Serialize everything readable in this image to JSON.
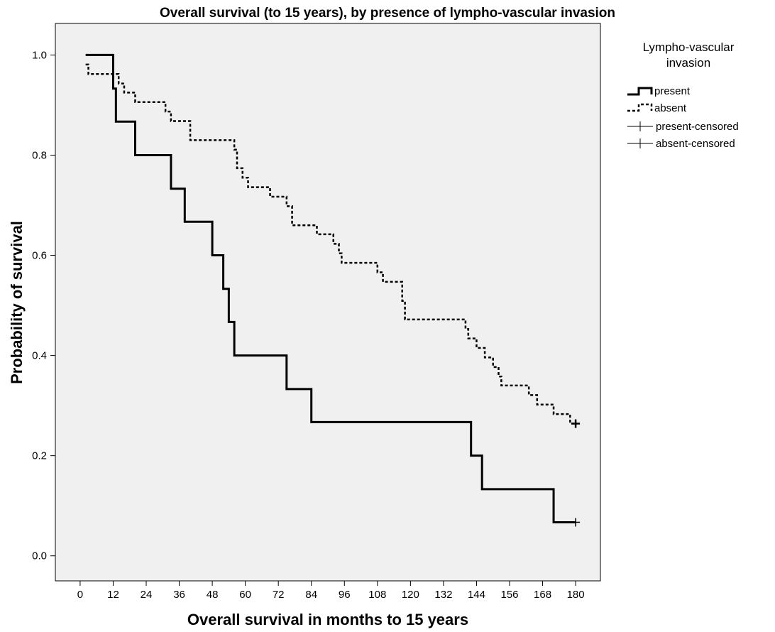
{
  "chart_data": {
    "type": "line",
    "subtype": "kaplan-meier step survival",
    "title": "Overall survival (to 15 years), by presence of lympho-vascular invasion",
    "xlabel": "Overall survival in months to 15 years",
    "ylabel": "Probability of survival",
    "xlim": [
      -9,
      189
    ],
    "ylim": [
      -0.05,
      1.063
    ],
    "x_ticks": [
      0,
      12,
      24,
      36,
      48,
      60,
      72,
      84,
      96,
      108,
      120,
      132,
      144,
      156,
      168,
      180
    ],
    "y_ticks": [
      0.0,
      0.2,
      0.4,
      0.6,
      0.8,
      1.0
    ],
    "y_tick_labels": [
      "0.0",
      "0.2",
      "0.4",
      "0.6",
      "0.8",
      "1.0"
    ],
    "grid": false,
    "plot_background": "#f0f0f0",
    "legend": {
      "title": "Lympho-vascular invasion",
      "title_lines": [
        "Lympho-vascular",
        "invasion"
      ],
      "placement": "right",
      "entries": [
        "present",
        "absent",
        "present-censored",
        "absent-censored"
      ]
    },
    "series": [
      {
        "name": "present",
        "line_style": "solid",
        "color": "#000000",
        "x": [
          2,
          12,
          13,
          20,
          33,
          38,
          48,
          52,
          54,
          56,
          75,
          84,
          142,
          146,
          172,
          180
        ],
        "y": [
          1.0,
          0.933,
          0.867,
          0.8,
          0.733,
          0.667,
          0.6,
          0.533,
          0.467,
          0.4,
          0.333,
          0.267,
          0.2,
          0.133,
          0.067,
          0.067
        ],
        "censored_x": [
          180
        ],
        "censored_y": [
          0.067
        ]
      },
      {
        "name": "absent",
        "line_style": "dashed",
        "color": "#000000",
        "x": [
          2,
          3,
          14,
          16,
          20,
          23,
          31,
          33,
          40,
          56,
          57,
          59,
          61,
          69,
          75,
          77,
          86,
          89,
          92,
          94,
          95,
          108,
          110,
          117,
          118,
          140,
          141,
          143,
          144,
          145,
          147,
          150,
          152,
          153,
          163,
          164,
          166,
          168,
          172,
          175,
          178,
          180
        ],
        "y": [
          0.981,
          0.962,
          0.943,
          0.925,
          0.906,
          0.906,
          0.887,
          0.868,
          0.83,
          0.811,
          0.774,
          0.755,
          0.736,
          0.717,
          0.698,
          0.66,
          0.642,
          0.642,
          0.623,
          0.604,
          0.585,
          0.566,
          0.547,
          0.509,
          0.472,
          0.453,
          0.434,
          0.434,
          0.415,
          0.415,
          0.396,
          0.377,
          0.358,
          0.34,
          0.321,
          0.321,
          0.302,
          0.302,
          0.283,
          0.283,
          0.264,
          0.264
        ],
        "censored_x": [
          180
        ],
        "censored_y": [
          0.264
        ]
      }
    ]
  }
}
